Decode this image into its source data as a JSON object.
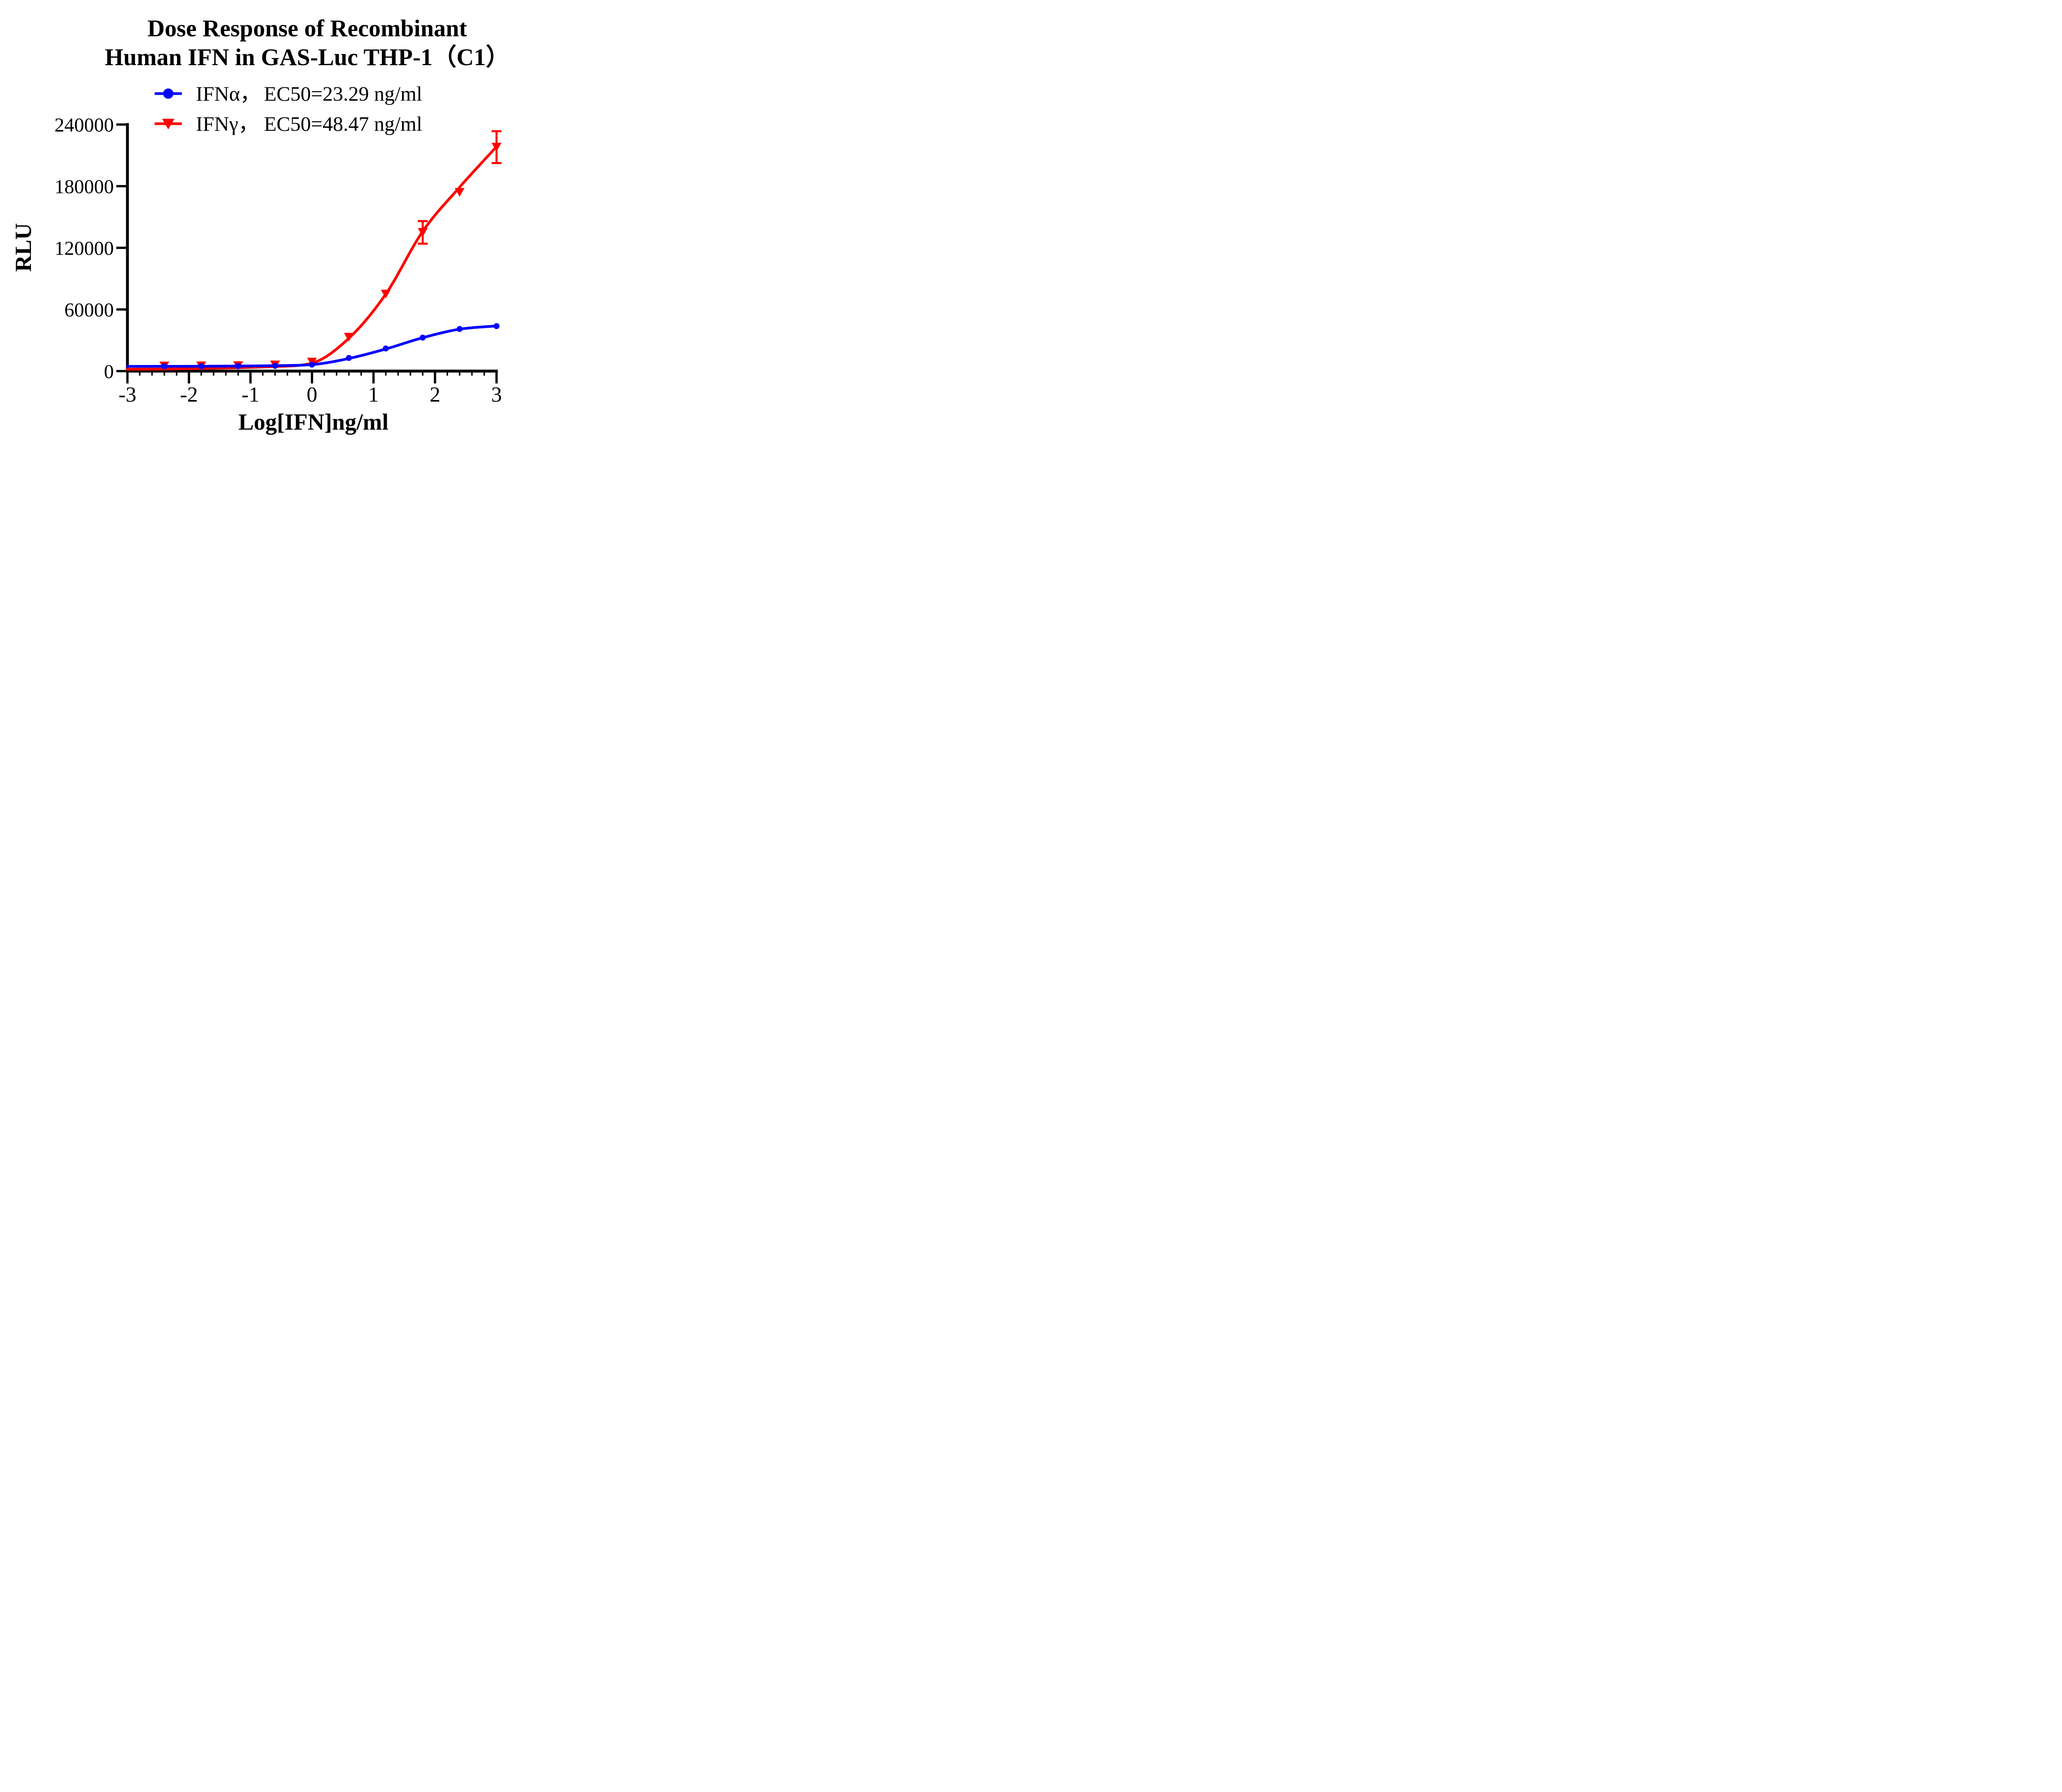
{
  "chart_data": {
    "type": "line",
    "title_line1": "Dose Response of Recombinant",
    "title_line2": "Human IFN in GAS-Luc THP-1（C1）",
    "xlabel": "Log[IFN]ng/ml",
    "ylabel": "RLU",
    "xlim": [
      -3,
      3
    ],
    "ylim": [
      0,
      240000
    ],
    "x_ticks": [
      -3,
      -2,
      -1,
      0,
      1,
      2,
      3
    ],
    "x_tick_labels": [
      "-3",
      "-2",
      "-1",
      "0",
      "1",
      "2",
      "3"
    ],
    "x_minor_tick_step": 0.2,
    "y_ticks": [
      0,
      60000,
      120000,
      180000,
      240000
    ],
    "y_tick_labels": [
      "0",
      "60000",
      "120000",
      "180000",
      "240000"
    ],
    "grid": false,
    "legend_position": "top-center",
    "axis_color": "#000000",
    "background_color": "#ffffff",
    "series": [
      {
        "name": "IFNα",
        "legend_label": "IFNα，",
        "legend_value": "EC50=23.29 ng/ml",
        "ec50_ng_ml": 23.29,
        "color": "#0000fe",
        "marker": "circle",
        "x": [
          -2.4,
          -1.8,
          -1.2,
          -0.6,
          0,
          0.6,
          1.2,
          1.8,
          2.4,
          3.0
        ],
        "y": [
          4700,
          4800,
          4900,
          5100,
          6300,
          12800,
          22000,
          32600,
          41000,
          43800
        ],
        "y_err": [
          0,
          0,
          0,
          0,
          0,
          0,
          0,
          0,
          0,
          0
        ],
        "curve_x": [
          -3,
          -2.4,
          -1.8,
          -1.2,
          -0.6,
          0,
          0.6,
          1.2,
          1.8,
          2.4,
          3.0
        ],
        "curve_y": [
          4600,
          4650,
          4750,
          4900,
          5300,
          6300,
          12300,
          21500,
          32500,
          40800,
          44000
        ]
      },
      {
        "name": "IFNγ",
        "legend_label": "IFNγ，",
        "legend_value": "EC50=48.47 ng/ml",
        "ec50_ng_ml": 48.47,
        "color": "#fe0000",
        "marker": "triangle-down",
        "x": [
          -2.4,
          -1.8,
          -1.2,
          -0.6,
          0,
          0.6,
          1.2,
          1.8,
          2.4,
          3.0
        ],
        "y": [
          5000,
          5100,
          5300,
          6000,
          8800,
          33000,
          75000,
          135000,
          174000,
          218000
        ],
        "y_err": [
          0,
          0,
          0,
          0,
          0,
          0,
          0,
          11000,
          0,
          15500
        ],
        "curve_x": [
          -3,
          -2.4,
          -1.8,
          -1.2,
          -0.6,
          0,
          0.6,
          1.2,
          1.8,
          2.4,
          3.0
        ],
        "curve_y": [
          1800,
          2100,
          2600,
          3300,
          4500,
          7800,
          32000,
          75000,
          136000,
          179000,
          218500
        ]
      }
    ]
  }
}
